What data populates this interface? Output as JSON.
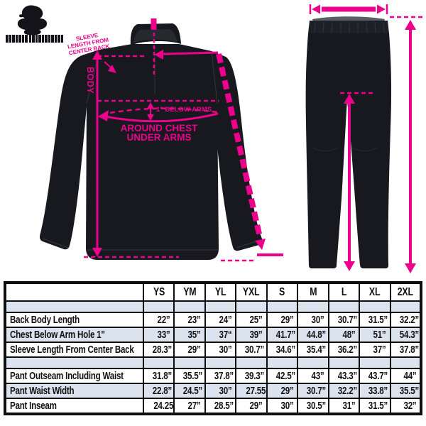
{
  "diagram": {
    "accent_color": "#EC008C",
    "jacket": {
      "body_label": "BODY",
      "below_arms_label": "1\" BELOW ARMS",
      "around_chest_line1": "AROUND CHEST",
      "around_chest_line2": "UNDER ARMS",
      "sleeve_note_lines": [
        "SLEEVE",
        "LENGTH FROM",
        "CENTER BACK"
      ]
    }
  },
  "table": {
    "columns": [
      "YS",
      "YM",
      "YL",
      "YXL",
      "S",
      "M",
      "L",
      "XL",
      "2XL"
    ],
    "rows": [
      {
        "spacer": true,
        "label": "",
        "values": [
          "",
          "",
          "",
          "",
          "",
          "",
          "",
          "",
          ""
        ]
      },
      {
        "spacer": false,
        "label": "Back Body Length",
        "values": [
          "22”",
          "23”",
          "24”",
          "25”",
          "29”",
          "30”",
          "30.7”",
          "31.5”",
          "32.2”"
        ]
      },
      {
        "spacer": false,
        "label": "Chest Below Arm Hole 1\"",
        "values": [
          "33”",
          "35”",
          "37“",
          "39”",
          "41.7”",
          "44.8”",
          "48”",
          "51”",
          "54.3”"
        ]
      },
      {
        "spacer": false,
        "label": "Sleeve Length From Center Back",
        "values": [
          "28.3”",
          "29”",
          "30”",
          "30.7”",
          "34.6”",
          "35.4”",
          "36.2”",
          "37”",
          "37.8”"
        ]
      },
      {
        "spacer": true,
        "label": "",
        "values": [
          "",
          "",
          "",
          "",
          "",
          "",
          "",
          "",
          ""
        ]
      },
      {
        "spacer": false,
        "label": "Pant Outseam Including Waist",
        "values": [
          "31.8”",
          "35.5”",
          "37.8”",
          "39.3”",
          "42.5”",
          "43”",
          "43.3”",
          "43.7”",
          "44”"
        ]
      },
      {
        "spacer": false,
        "label": "Pant Waist Width",
        "values": [
          "22.8”",
          "24.5”",
          "30”",
          "27.55”",
          "29”",
          "30.7”",
          "32.2”",
          "33.8”",
          "35.5”"
        ]
      },
      {
        "spacer": false,
        "label": "Pant Inseam",
        "values": [
          "24.25”",
          "27”",
          "28.5”",
          "29”",
          "30”",
          "30.5”",
          "31”",
          "31.5”",
          "32”"
        ]
      }
    ]
  }
}
